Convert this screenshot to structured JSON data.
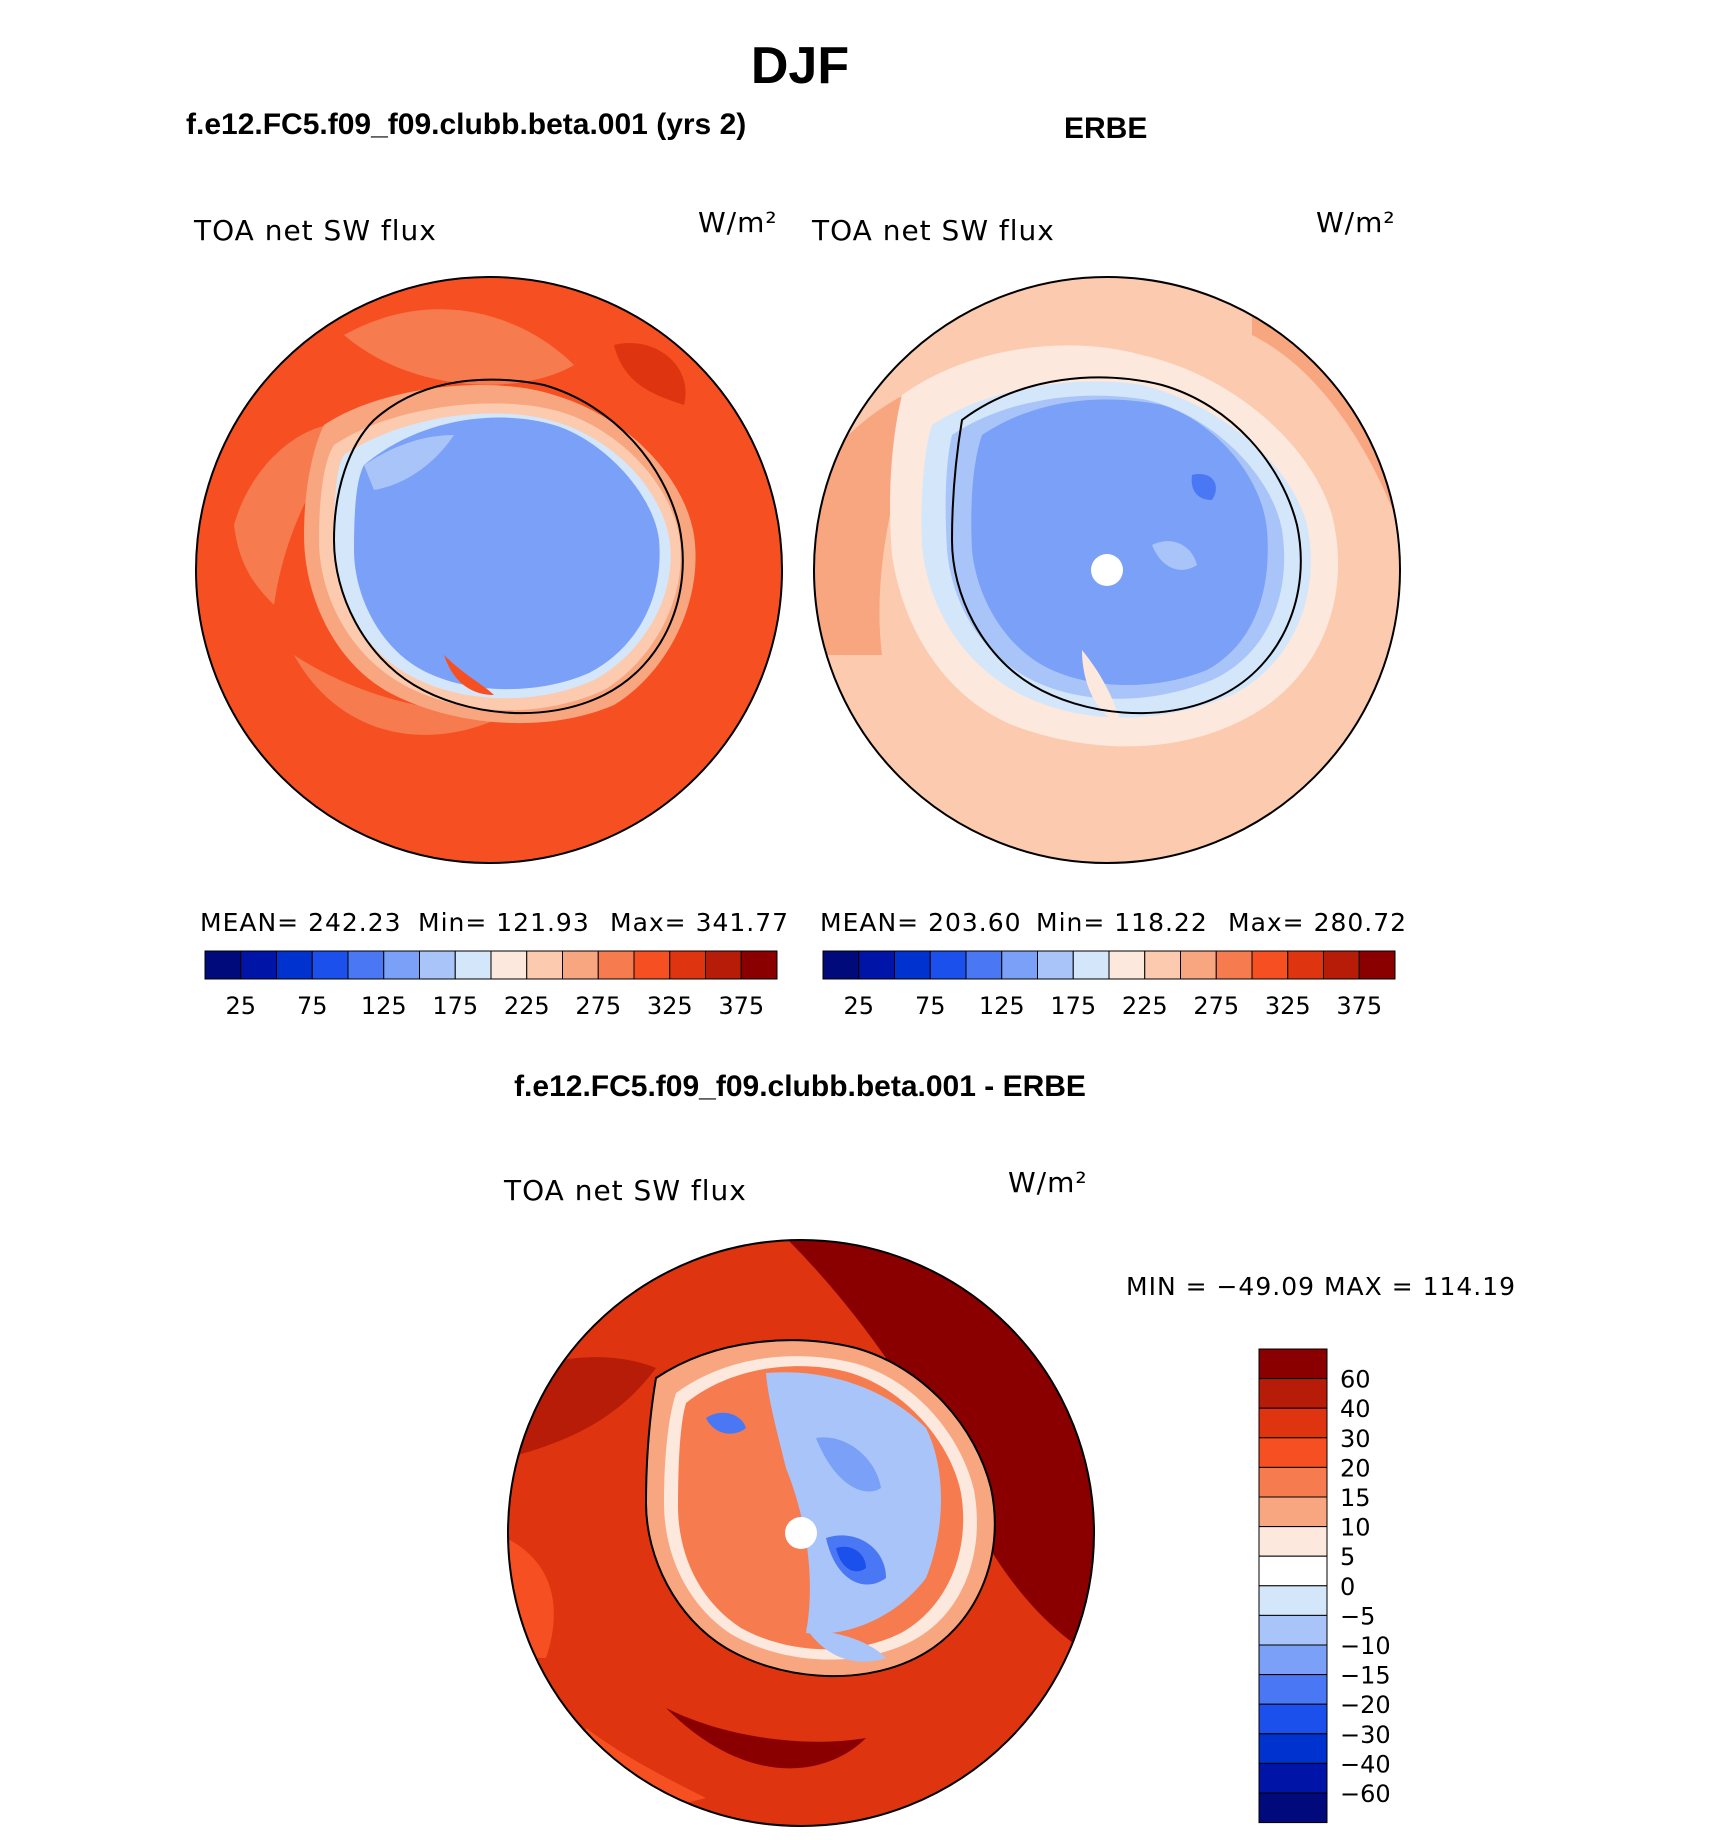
{
  "title": "DJF",
  "panels": [
    {
      "heading": "f.e12.FC5.f09_f09.clubb.beta.001 (yrs 2)",
      "variable": "TOA net SW flux",
      "units": "W/m²",
      "stats": {
        "mean": "MEAN= 242.23",
        "min": "Min= 121.93",
        "max": "Max= 341.77"
      }
    },
    {
      "heading": "ERBE",
      "variable": "TOA net SW flux",
      "units": "W/m²",
      "stats": {
        "mean": "MEAN= 203.60",
        "min": "Min= 118.22",
        "max": "Max= 280.72"
      }
    }
  ],
  "colorbar_abs": {
    "ticks": [
      "25",
      "75",
      "125",
      "175",
      "225",
      "275",
      "325",
      "375"
    ],
    "colors": [
      "#000a7a",
      "#0014a8",
      "#0032d0",
      "#1c50ec",
      "#4a78f4",
      "#7aa0f8",
      "#a8c4f8",
      "#d4e6fa",
      "#fce8dc",
      "#fccaae",
      "#f8a680",
      "#f67c50",
      "#f65022",
      "#de3410",
      "#b61c08",
      "#8a0000"
    ]
  },
  "difference": {
    "heading": "f.e12.FC5.f09_f09.clubb.beta.001 - ERBE",
    "variable": "TOA net SW flux",
    "units": "W/m²",
    "minmax": "MIN = −49.09  MAX = 114.19",
    "labels": [
      "60",
      "40",
      "30",
      "20",
      "15",
      "10",
      "5",
      "0",
      "−5",
      "−10",
      "−15",
      "−20",
      "−30",
      "−40",
      "−60"
    ],
    "colors": [
      "#8a0000",
      "#b61c08",
      "#de3410",
      "#f65022",
      "#f67c50",
      "#f8a680",
      "#fce8dc",
      "#ffffff",
      "#d4e6fa",
      "#a8c4f8",
      "#7aa0f8",
      "#4a78f4",
      "#1c50ec",
      "#0032d0",
      "#0014a8",
      "#000a7a"
    ]
  }
}
